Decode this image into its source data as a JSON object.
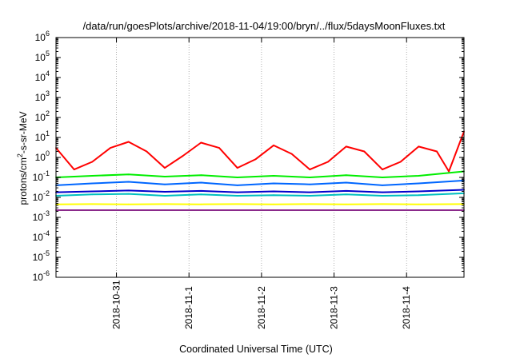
{
  "chart_data": {
    "type": "line",
    "title": "/data/run/goesPlots/archive/2018-11-04/19:00/bryn/../flux/5daysMoonFluxes.txt",
    "xlabel": "Coordinated Universal Time (UTC)",
    "ylabel": {
      "base": "protons/cm",
      "sup": "2",
      "rest": "-s-sr-MeV"
    },
    "yscale": "log",
    "ylim": [
      1e-06,
      1000000.0
    ],
    "yticks": [
      {
        "base": "10",
        "exp": "-6",
        "value": 1e-06
      },
      {
        "base": "10",
        "exp": "-5",
        "value": 1e-05
      },
      {
        "base": "10",
        "exp": "-4",
        "value": 0.0001
      },
      {
        "base": "10",
        "exp": "-3",
        "value": 0.001
      },
      {
        "base": "10",
        "exp": "-2",
        "value": 0.01
      },
      {
        "base": "10",
        "exp": "-1",
        "value": 0.1
      },
      {
        "base": "10",
        "exp": "0",
        "value": 1
      },
      {
        "base": "10",
        "exp": "1",
        "value": 10
      },
      {
        "base": "10",
        "exp": "2",
        "value": 100
      },
      {
        "base": "10",
        "exp": "3",
        "value": 1000
      },
      {
        "base": "10",
        "exp": "4",
        "value": 10000
      },
      {
        "base": "10",
        "exp": "5",
        "value": 100000
      },
      {
        "base": "10",
        "exp": "6",
        "value": 1000000
      }
    ],
    "xlim": [
      "2018-10-30 04:00",
      "2018-11-04 19:00"
    ],
    "xticks": [
      "2018-10-31",
      "2018-11-1",
      "2018-11-2",
      "2018-11-3",
      "2018-11-4"
    ],
    "grid": true,
    "legend": "none",
    "series": [
      {
        "color": "#ff0000",
        "x": [
          "2018-10-30 04:00",
          "2018-10-30 10:00",
          "2018-10-30 16:00",
          "2018-10-30 22:00",
          "2018-10-31 04:00",
          "2018-10-31 10:00",
          "2018-10-31 16:00",
          "2018-10-31 22:00",
          "2018-11-01 04:00",
          "2018-11-01 10:00",
          "2018-11-01 16:00",
          "2018-11-01 22:00",
          "2018-11-02 04:00",
          "2018-11-02 10:00",
          "2018-11-02 16:00",
          "2018-11-02 22:00",
          "2018-11-03 04:00",
          "2018-11-03 10:00",
          "2018-11-03 16:00",
          "2018-11-03 22:00",
          "2018-11-04 04:00",
          "2018-11-04 10:00",
          "2018-11-04 14:00",
          "2018-11-04 19:00"
        ],
        "values": [
          3,
          0.25,
          0.6,
          3,
          6,
          2,
          0.3,
          1.2,
          5.5,
          3,
          0.3,
          0.8,
          4,
          1.5,
          0.25,
          0.6,
          3.5,
          2,
          0.25,
          0.6,
          3.5,
          2,
          0.2,
          20
        ]
      },
      {
        "color": "#00ee00",
        "x": [
          "2018-10-30 04:00",
          "2018-10-30 16:00",
          "2018-10-31 04:00",
          "2018-10-31 16:00",
          "2018-11-01 04:00",
          "2018-11-01 16:00",
          "2018-11-02 04:00",
          "2018-11-02 16:00",
          "2018-11-03 04:00",
          "2018-11-03 16:00",
          "2018-11-04 04:00",
          "2018-11-04 19:00"
        ],
        "values": [
          0.1,
          0.12,
          0.14,
          0.11,
          0.13,
          0.1,
          0.12,
          0.1,
          0.13,
          0.1,
          0.12,
          0.2
        ]
      },
      {
        "color": "#00bfbf",
        "x": [
          "2018-10-30 04:00",
          "2018-10-30 16:00",
          "2018-10-31 04:00",
          "2018-10-31 16:00",
          "2018-11-01 04:00",
          "2018-11-01 16:00",
          "2018-11-02 04:00",
          "2018-11-02 16:00",
          "2018-11-03 04:00",
          "2018-11-03 16:00",
          "2018-11-04 04:00",
          "2018-11-04 19:00"
        ],
        "values": [
          0.012,
          0.014,
          0.015,
          0.012,
          0.014,
          0.012,
          0.013,
          0.012,
          0.014,
          0.012,
          0.013,
          0.016
        ]
      },
      {
        "color": "#0066ff",
        "x": [
          "2018-10-30 04:00",
          "2018-10-30 16:00",
          "2018-10-31 04:00",
          "2018-10-31 16:00",
          "2018-11-01 04:00",
          "2018-11-01 16:00",
          "2018-11-02 04:00",
          "2018-11-02 16:00",
          "2018-11-03 04:00",
          "2018-11-03 16:00",
          "2018-11-04 04:00",
          "2018-11-04 19:00"
        ],
        "values": [
          0.04,
          0.05,
          0.06,
          0.045,
          0.055,
          0.04,
          0.05,
          0.045,
          0.055,
          0.04,
          0.05,
          0.07
        ]
      },
      {
        "color": "#0000cc",
        "x": [
          "2018-10-30 04:00",
          "2018-10-30 16:00",
          "2018-10-31 04:00",
          "2018-10-31 16:00",
          "2018-11-01 04:00",
          "2018-11-01 16:00",
          "2018-11-02 04:00",
          "2018-11-02 16:00",
          "2018-11-03 04:00",
          "2018-11-03 16:00",
          "2018-11-04 04:00",
          "2018-11-04 19:00"
        ],
        "values": [
          0.018,
          0.02,
          0.022,
          0.019,
          0.021,
          0.018,
          0.02,
          0.018,
          0.021,
          0.018,
          0.02,
          0.024
        ]
      },
      {
        "color": "#ffff00",
        "x": [
          "2018-10-30 04:00",
          "2018-10-30 16:00",
          "2018-10-31 04:00",
          "2018-10-31 16:00",
          "2018-11-01 04:00",
          "2018-11-01 16:00",
          "2018-11-02 04:00",
          "2018-11-02 16:00",
          "2018-11-03 04:00",
          "2018-11-03 16:00",
          "2018-11-04 04:00",
          "2018-11-04 19:00"
        ],
        "values": [
          0.0045,
          0.0046,
          0.0045,
          0.0046,
          0.0045,
          0.0046,
          0.0045,
          0.0046,
          0.0045,
          0.0046,
          0.0045,
          0.0046
        ]
      },
      {
        "color": "#8b2a8b",
        "x": [
          "2018-10-30 04:00",
          "2018-10-30 16:00",
          "2018-10-31 04:00",
          "2018-10-31 16:00",
          "2018-11-01 04:00",
          "2018-11-01 16:00",
          "2018-11-02 04:00",
          "2018-11-02 16:00",
          "2018-11-03 04:00",
          "2018-11-03 16:00",
          "2018-11-04 04:00",
          "2018-11-04 19:00"
        ],
        "values": [
          0.0023,
          0.0023,
          0.0023,
          0.0023,
          0.0023,
          0.0023,
          0.0023,
          0.0023,
          0.0023,
          0.0023,
          0.0023,
          0.0023
        ]
      }
    ]
  }
}
